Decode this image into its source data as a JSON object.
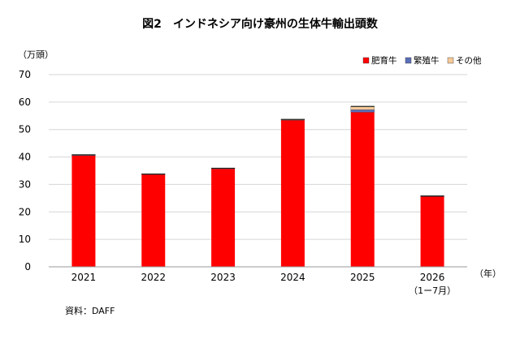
{
  "chart_data": {
    "type": "bar",
    "stacked": true,
    "title": "図2　インドネシア向け豪州の生体牛輸出頭数",
    "ylabel": "（万頭）",
    "xlabel": "（年）",
    "categories": [
      "2021",
      "2022",
      "2023",
      "2024",
      "2025",
      "2026"
    ],
    "category_notes": [
      "",
      "",
      "",
      "",
      "",
      "（1ー7月）"
    ],
    "ylim": [
      0,
      70
    ],
    "yticks": [
      0,
      10,
      20,
      30,
      40,
      50,
      60,
      70
    ],
    "grid": true,
    "legend_position": "top-right",
    "series": [
      {
        "name": "肥育牛",
        "color": "#ff0000",
        "values": [
          40.5,
          33.6,
          35.7,
          53.4,
          56.3,
          25.6
        ]
      },
      {
        "name": "繁殖牛",
        "color": "#5b6fb8",
        "values": [
          0.2,
          0.1,
          0.1,
          0.1,
          0.9,
          0.1
        ]
      },
      {
        "name": "その他",
        "color": "#f6c998",
        "values": [
          0.1,
          0.1,
          0.1,
          0.2,
          1.2,
          0.1
        ]
      }
    ],
    "source": "資料：DAFF"
  }
}
